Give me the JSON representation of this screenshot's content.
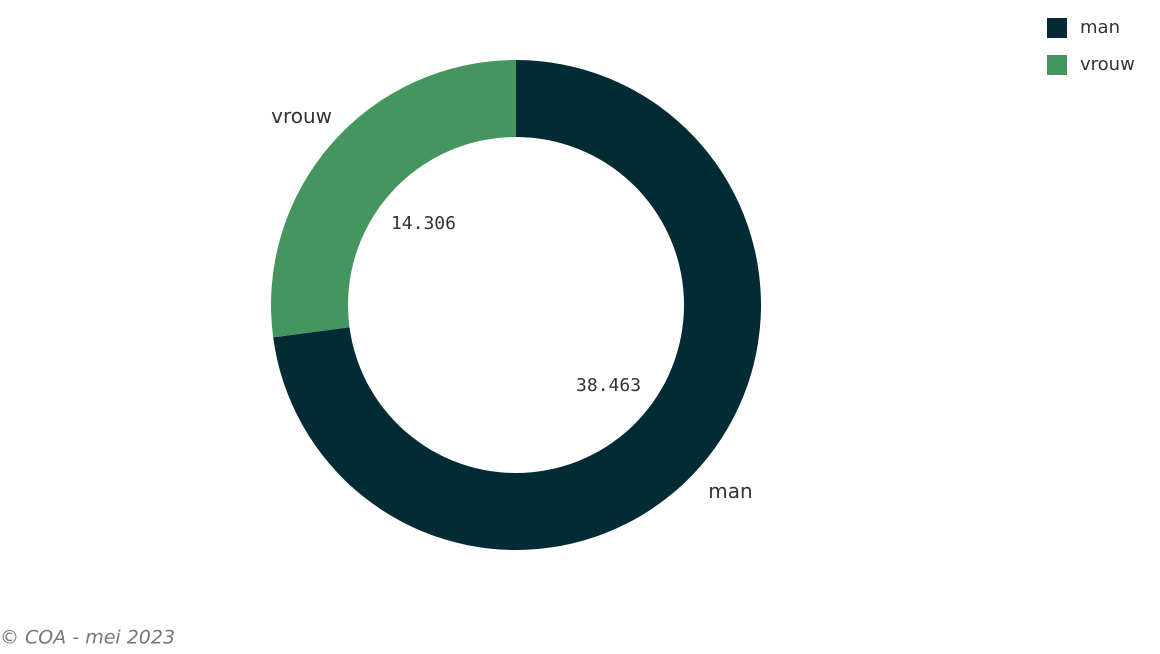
{
  "chart_data": {
    "type": "donut",
    "categories": [
      "man",
      "vrouw"
    ],
    "values": [
      38463,
      14306
    ],
    "value_labels": [
      "38.463",
      "14.306"
    ],
    "colors": [
      "#032b35",
      "#45955f"
    ],
    "legend": "top-right",
    "footnote": "© COA - mei 2023"
  }
}
